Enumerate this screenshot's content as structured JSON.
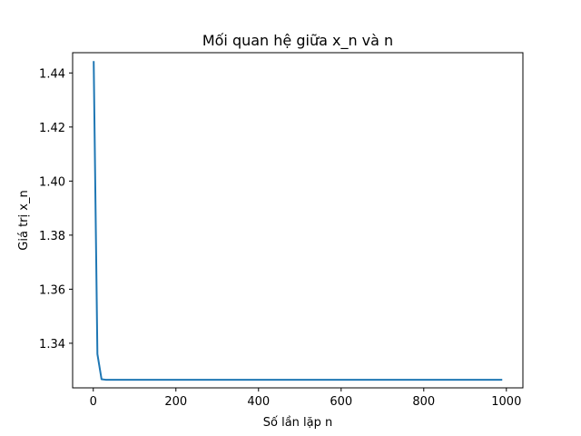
{
  "chart_data": {
    "type": "line",
    "title": "Mối quan hệ giữa x_n và n",
    "xlabel": "Số lần lặp n",
    "ylabel": "Giá trị x_n",
    "xlim": [
      -50,
      1040
    ],
    "ylim": [
      1.3235,
      1.4475
    ],
    "x_ticks": [
      0,
      200,
      400,
      600,
      800,
      1000
    ],
    "y_ticks": [
      1.34,
      1.36,
      1.38,
      1.4,
      1.42,
      1.44
    ],
    "grid": false,
    "line_color": "#1f77b4",
    "series": [
      {
        "x": [
          1,
          10,
          20,
          30,
          40,
          50,
          100,
          200,
          300,
          400,
          500,
          600,
          700,
          800,
          900,
          990
        ],
        "y": [
          1.4444,
          1.336,
          1.3267,
          1.3265,
          1.3265,
          1.3265,
          1.3265,
          1.3265,
          1.3265,
          1.3265,
          1.3265,
          1.3265,
          1.3265,
          1.3265,
          1.3265,
          1.3265
        ]
      }
    ]
  }
}
